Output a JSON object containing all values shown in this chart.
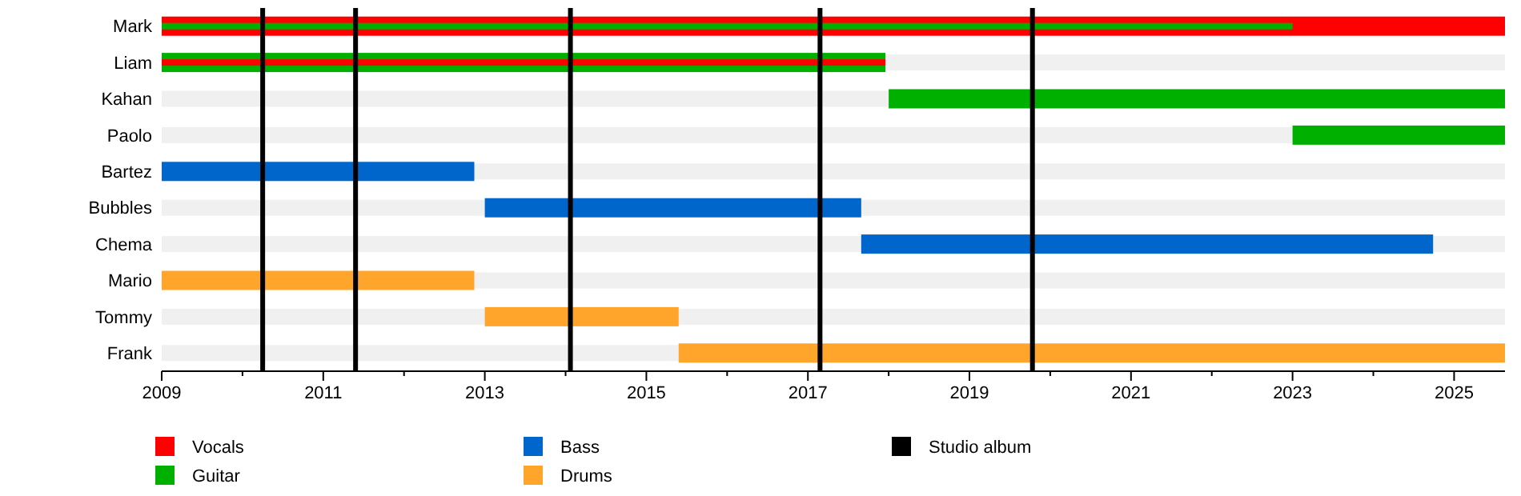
{
  "chart_data": {
    "type": "bar",
    "orientation": "horizontal",
    "categories": [
      "Mark",
      "Liam",
      "Kahan",
      "Paolo",
      "Bartez",
      "Bubbles",
      "Chema",
      "Mario",
      "Tommy",
      "Frank"
    ],
    "xlim": [
      2009,
      2025.63
    ],
    "xticks": [
      2009,
      {
        "value": 2010,
        "label": null
      },
      2011,
      {
        "value": 2012,
        "label": null
      },
      2013,
      {
        "value": 2014,
        "label": null
      },
      2015,
      {
        "value": 2016,
        "label": null
      },
      2017,
      {
        "value": 2018,
        "label": null
      },
      2019,
      {
        "value": 2020,
        "label": null
      },
      2021,
      {
        "value": 2022,
        "label": null
      },
      2023,
      {
        "value": 2024,
        "label": null
      },
      2025
    ],
    "series": [
      {
        "name": "Vocals",
        "color": "#ff0000",
        "base": [
          2009,
          null,
          null,
          null,
          null,
          null,
          null,
          null,
          null,
          null
        ],
        "values": [
          16.63,
          null,
          null,
          null,
          null,
          null,
          null,
          null,
          null,
          null
        ]
      },
      {
        "name": "Guitar",
        "color": "#00b000",
        "base": [
          null,
          2009,
          2018,
          2023,
          null,
          null,
          null,
          null,
          null,
          null
        ],
        "values": [
          null,
          8.96,
          7.63,
          2.63,
          null,
          null,
          null,
          null,
          null,
          null
        ]
      },
      {
        "name": "Bass",
        "color": "#0066cc",
        "base": [
          null,
          null,
          null,
          null,
          2009,
          2013,
          2017.66,
          null,
          null,
          null
        ],
        "values": [
          null,
          null,
          null,
          null,
          3.87,
          4.66,
          7.08,
          null,
          null,
          null
        ]
      },
      {
        "name": "Drums",
        "color": "#ffa52b",
        "base": [
          null,
          null,
          null,
          null,
          null,
          null,
          null,
          2009,
          2013,
          2015.4
        ],
        "values": [
          null,
          null,
          null,
          null,
          null,
          null,
          null,
          3.87,
          2.4,
          10.23
        ]
      },
      {
        "color": "#00b000",
        "base": [
          2009,
          null,
          null,
          null,
          null,
          null,
          null,
          null,
          null,
          null
        ],
        "values": [
          14,
          null,
          null,
          null,
          null,
          null,
          null,
          null,
          null,
          null
        ]
      },
      {
        "color": "#ff0000",
        "base": [
          null,
          2009,
          null,
          null,
          null,
          null,
          null,
          null,
          null,
          null
        ],
        "values": [
          null,
          8.96,
          null,
          null,
          null,
          null,
          null,
          null,
          null,
          null
        ]
      }
    ],
    "ref_lines": [
      {
        "axis": "x",
        "value": 2010.25,
        "label": "Studio album",
        "color": "#000000"
      },
      {
        "axis": "x",
        "value": 2011.4,
        "label": null,
        "color": "#000000"
      },
      {
        "axis": "x",
        "value": 2014.06,
        "label": null,
        "color": "#000000"
      },
      {
        "axis": "x",
        "value": 2017.15,
        "label": null,
        "color": "#000000"
      },
      {
        "axis": "x",
        "value": 2019.78,
        "label": null,
        "color": "#000000"
      }
    ],
    "legend": "bottom",
    "grid": false
  }
}
